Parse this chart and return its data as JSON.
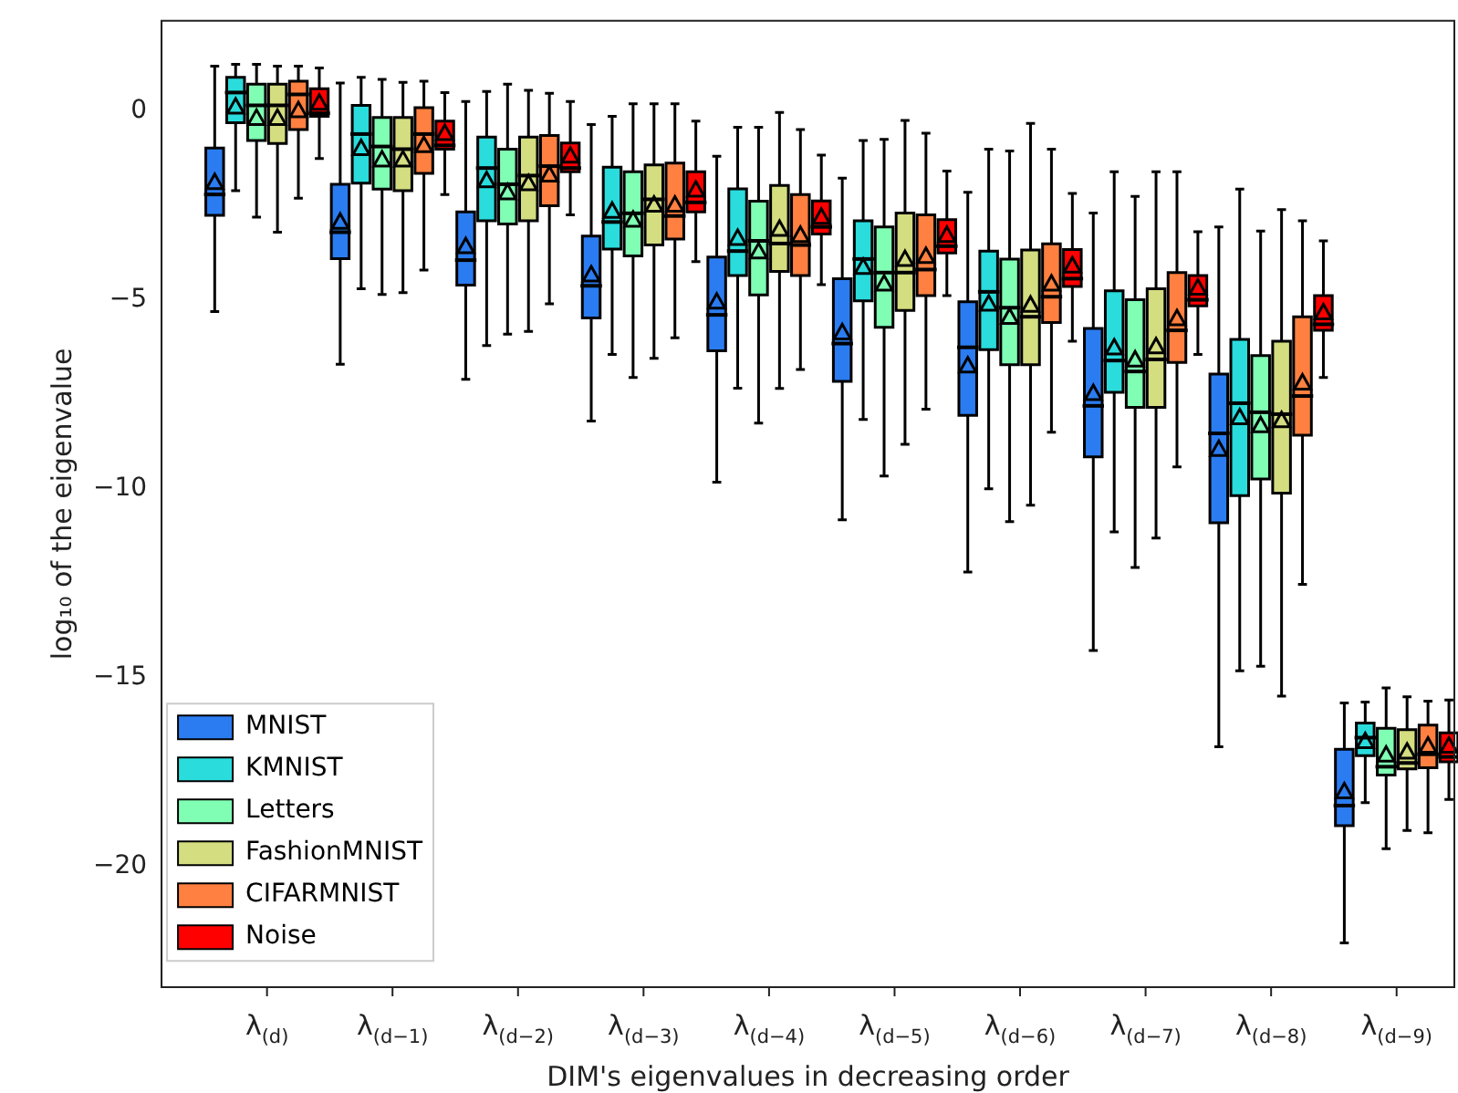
{
  "chart_data": {
    "type": "box",
    "xlabel": "DIM's eigenvalues in decreasing order",
    "ylabel": "log₁₀ of the eigenvalue",
    "categories": [
      "λ$_{(d)}$",
      "λ$_{(d−1)}$",
      "λ$_{(d−2)}$",
      "λ$_{(d−3)}$",
      "λ$_{(d−4)}$",
      "λ$_{(d−5)}$",
      "λ$_{(d−6)}$",
      "λ$_{(d−7)}$",
      "λ$_{(d−8)}$",
      "λ$_{(d−9)}$"
    ],
    "ylim": [
      -23.2,
      2.4
    ],
    "yticks": [
      0,
      -5,
      -10,
      -15,
      -20
    ],
    "grid": false,
    "legend": "bottom left",
    "marker": "triangle",
    "series": [
      {
        "name": "MNIST",
        "color": "#2b7cf0",
        "boxes": [
          {
            "low": -5.3,
            "q1": -2.75,
            "median": -2.2,
            "q3": -0.97,
            "high": 1.2,
            "mean": -1.9
          },
          {
            "low": -6.7,
            "q1": -3.9,
            "median": -3.2,
            "q3": -1.93,
            "high": 0.75,
            "mean": -2.95
          },
          {
            "low": -7.1,
            "q1": -4.6,
            "median": -3.94,
            "q3": -2.66,
            "high": 0.26,
            "mean": -3.6
          },
          {
            "low": -8.2,
            "q1": -5.47,
            "median": -4.62,
            "q3": -3.3,
            "high": -0.35,
            "mean": -4.35
          },
          {
            "low": -9.82,
            "q1": -6.34,
            "median": -5.39,
            "q3": -3.86,
            "high": -1.19,
            "mean": -5.07
          },
          {
            "low": -10.82,
            "q1": -7.15,
            "median": -6.15,
            "q3": -4.43,
            "high": -1.77,
            "mean": -5.88
          },
          {
            "low": -12.2,
            "q1": -8.05,
            "median": -6.25,
            "q3": -5.04,
            "high": -2.14,
            "mean": -6.76
          },
          {
            "low": -14.28,
            "q1": -9.15,
            "median": -7.8,
            "q3": -5.75,
            "high": -2.69,
            "mean": -7.49
          },
          {
            "low": -16.83,
            "q1": -10.9,
            "median": -8.53,
            "q3": -6.96,
            "high": -3.06,
            "mean": -8.97
          },
          {
            "low": -22.03,
            "q1": -18.92,
            "median": -18.39,
            "q3": -16.9,
            "high": -15.67,
            "mean": -18.04
          }
        ]
      },
      {
        "name": "KMNIST",
        "color": "#2adcdc",
        "boxes": [
          {
            "low": -2.1,
            "q1": -0.3,
            "median": 0.5,
            "q3": 0.9,
            "high": 1.25,
            "mean": 0.1
          },
          {
            "low": -4.7,
            "q1": -1.9,
            "median": -0.6,
            "q3": 0.16,
            "high": 0.9,
            "mean": -1.0
          },
          {
            "low": -6.2,
            "q1": -2.9,
            "median": -1.5,
            "q3": -0.68,
            "high": 0.53,
            "mean": -1.85
          },
          {
            "low": -6.44,
            "q1": -3.65,
            "median": -2.93,
            "q3": -1.48,
            "high": -0.13,
            "mean": -2.66
          },
          {
            "low": -7.33,
            "q1": -4.35,
            "median": -3.7,
            "q3": -2.05,
            "high": -0.42,
            "mean": -3.38
          },
          {
            "low": -8.16,
            "q1": -5.02,
            "median": -3.91,
            "q3": -2.9,
            "high": -0.77,
            "mean": -4.15
          },
          {
            "low": -10.0,
            "q1": -6.31,
            "median": -4.78,
            "q3": -3.7,
            "high": -1.0,
            "mean": -5.12
          },
          {
            "low": -11.14,
            "q1": -7.44,
            "median": -6.6,
            "q3": -4.75,
            "high": -1.6,
            "mean": -6.28
          },
          {
            "low": -14.82,
            "q1": -10.18,
            "median": -7.73,
            "q3": -6.04,
            "high": -2.06,
            "mean": -8.13
          },
          {
            "low": -18.31,
            "q1": -17.07,
            "median": -16.59,
            "q3": -16.2,
            "high": -15.65,
            "mean": -16.71
          }
        ]
      },
      {
        "name": "Letters",
        "color": "#80ffb4",
        "boxes": [
          {
            "low": -2.8,
            "q1": -0.77,
            "median": 0.16,
            "q3": 0.72,
            "high": 1.25,
            "mean": -0.2
          },
          {
            "low": -4.85,
            "q1": -2.06,
            "median": -0.93,
            "q3": -0.16,
            "high": 0.85,
            "mean": -1.3
          },
          {
            "low": -5.9,
            "q1": -2.98,
            "median": -1.93,
            "q3": -1.0,
            "high": 0.72,
            "mean": -2.17
          },
          {
            "low": -7.05,
            "q1": -3.83,
            "median": -2.7,
            "q3": -1.6,
            "high": 0.2,
            "mean": -2.9
          },
          {
            "low": -8.26,
            "q1": -4.86,
            "median": -3.43,
            "q3": -2.38,
            "high": -0.42,
            "mean": -3.74
          },
          {
            "low": -9.66,
            "q1": -5.72,
            "median": -4.27,
            "q3": -3.06,
            "high": -0.74,
            "mean": -4.59
          },
          {
            "low": -10.87,
            "q1": -6.71,
            "median": -5.2,
            "q3": -3.91,
            "high": -1.05,
            "mean": -5.47
          },
          {
            "low": -12.08,
            "q1": -7.84,
            "median": -6.89,
            "q3": -4.99,
            "high": -2.25,
            "mean": -6.6
          },
          {
            "low": -14.7,
            "q1": -9.74,
            "median": -7.97,
            "q3": -6.47,
            "high": -3.17,
            "mean": -8.34
          },
          {
            "low": -19.53,
            "q1": -17.58,
            "median": -17.36,
            "q3": -16.34,
            "high": -15.27,
            "mean": -17.07
          }
        ]
      },
      {
        "name": "FashionMNIST",
        "color": "#d4dd80",
        "boxes": [
          {
            "low": -3.2,
            "q1": -0.85,
            "median": 0.16,
            "q3": 0.72,
            "high": 1.2,
            "mean": -0.2
          },
          {
            "low": -4.8,
            "q1": -2.1,
            "median": -1.0,
            "q3": -0.16,
            "high": 0.77,
            "mean": -1.3
          },
          {
            "low": -5.83,
            "q1": -2.9,
            "median": -1.7,
            "q3": -0.68,
            "high": 0.56,
            "mean": -1.93
          },
          {
            "low": -6.54,
            "q1": -3.54,
            "median": -2.33,
            "q3": -1.42,
            "high": 0.2,
            "mean": -2.5
          },
          {
            "low": -7.34,
            "q1": -4.24,
            "median": -3.5,
            "q3": -1.96,
            "high": -0.03,
            "mean": -3.14
          },
          {
            "low": -8.82,
            "q1": -5.27,
            "median": -4.27,
            "q3": -2.69,
            "high": -0.24,
            "mean": -3.94
          },
          {
            "low": -10.43,
            "q1": -6.71,
            "median": -5.44,
            "q3": -3.67,
            "high": -0.32,
            "mean": -5.15
          },
          {
            "low": -11.3,
            "q1": -7.84,
            "median": -6.57,
            "q3": -4.7,
            "high": -1.6,
            "mean": -6.25
          },
          {
            "low": -15.49,
            "q1": -10.11,
            "median": -8.02,
            "q3": -6.09,
            "high": -2.6,
            "mean": -8.21
          },
          {
            "low": -19.05,
            "q1": -17.42,
            "median": -17.26,
            "q3": -16.38,
            "high": -15.51,
            "mean": -16.99
          }
        ]
      },
      {
        "name": "CIFARMNIST",
        "color": "#ff8040",
        "boxes": [
          {
            "low": -2.3,
            "q1": -0.48,
            "median": 0.45,
            "q3": 0.8,
            "high": 1.2,
            "mean": 0.0
          },
          {
            "low": -4.2,
            "q1": -1.64,
            "median": -0.6,
            "q3": 0.1,
            "high": 0.8,
            "mean": -0.92
          },
          {
            "low": -5.1,
            "q1": -2.5,
            "median": -1.45,
            "q3": -0.64,
            "high": 0.48,
            "mean": -1.7
          },
          {
            "low": -6.0,
            "q1": -3.38,
            "median": -2.77,
            "q3": -1.37,
            "high": 0.2,
            "mean": -2.5
          },
          {
            "low": -6.84,
            "q1": -4.35,
            "median": -3.54,
            "q3": -2.2,
            "high": -0.48,
            "mean": -3.3
          },
          {
            "low": -7.89,
            "q1": -4.88,
            "median": -4.19,
            "q3": -2.74,
            "high": -0.58,
            "mean": -3.86
          },
          {
            "low": -8.5,
            "q1": -5.59,
            "median": -4.91,
            "q3": -3.51,
            "high": -1.0,
            "mean": -4.59
          },
          {
            "low": -9.42,
            "q1": -6.65,
            "median": -5.8,
            "q3": -4.27,
            "high": -1.6,
            "mean": -5.51
          },
          {
            "low": -12.53,
            "q1": -8.58,
            "median": -7.54,
            "q3": -5.44,
            "high": -2.9,
            "mean": -7.21
          },
          {
            "low": -19.11,
            "q1": -17.39,
            "median": -17.03,
            "q3": -16.26,
            "high": -15.62,
            "mean": -16.83
          }
        ]
      },
      {
        "name": "Noise",
        "color": "#ff0000",
        "boxes": [
          {
            "low": -1.25,
            "q1": -0.13,
            "median": -0.05,
            "q3": 0.6,
            "high": 1.15,
            "mean": 0.2
          },
          {
            "low": -2.2,
            "q1": -1.0,
            "median": -0.9,
            "q3": -0.26,
            "high": 0.5,
            "mean": -0.6
          },
          {
            "low": -2.74,
            "q1": -1.6,
            "median": -1.5,
            "q3": -0.84,
            "high": 0.26,
            "mean": -1.2
          },
          {
            "low": -3.98,
            "q1": -2.66,
            "median": -2.41,
            "q3": -1.6,
            "high": -0.26,
            "mean": -2.1
          },
          {
            "low": -4.59,
            "q1": -3.25,
            "median": -3.06,
            "q3": -2.37,
            "high": -1.16,
            "mean": -2.82
          },
          {
            "low": -4.88,
            "q1": -3.75,
            "median": -3.57,
            "q3": -2.87,
            "high": -1.58,
            "mean": -3.3
          },
          {
            "low": -6.09,
            "q1": -4.64,
            "median": -4.43,
            "q3": -3.66,
            "high": -2.17,
            "mean": -4.11
          },
          {
            "low": -6.44,
            "q1": -5.15,
            "median": -4.99,
            "q3": -4.35,
            "high": -3.19,
            "mean": -4.7
          },
          {
            "low": -7.05,
            "q1": -5.8,
            "median": -5.64,
            "q3": -4.88,
            "high": -3.43,
            "mean": -5.35
          },
          {
            "low": -18.23,
            "q1": -17.23,
            "median": -17.1,
            "q3": -16.46,
            "high": -15.59,
            "mean": -16.83
          }
        ]
      }
    ]
  }
}
